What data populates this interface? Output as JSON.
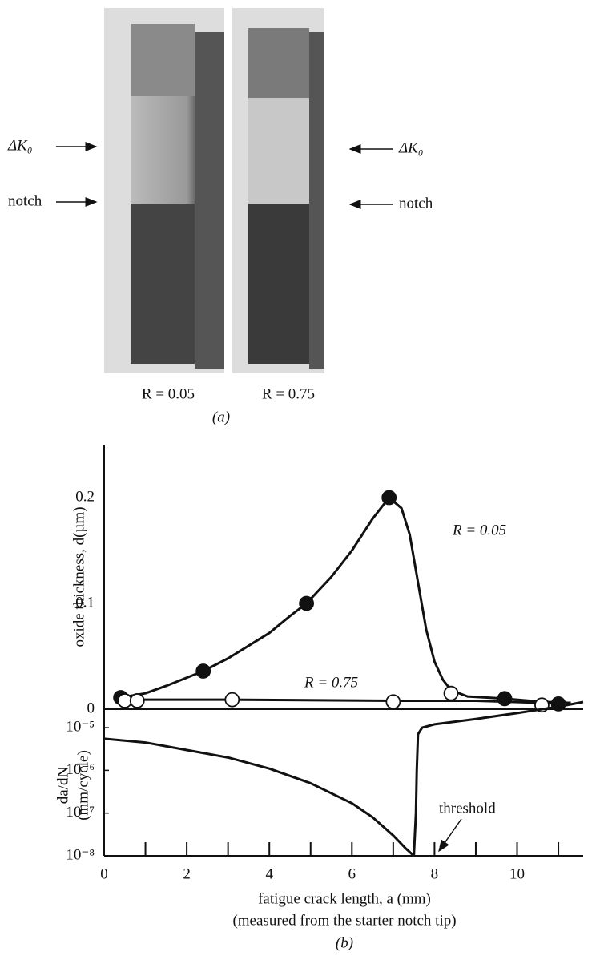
{
  "figure_a": {
    "labels": {
      "dk0_left": "ΔK₀",
      "notch_left": "notch",
      "dk0_right": "ΔK₀",
      "notch_right": "notch",
      "r_left": "R = 0.05",
      "r_right": "R = 0.75"
    },
    "caption": "(a)"
  },
  "chart_data": [
    {
      "type": "line",
      "y_label": "oxide thickness, d(µm)",
      "xlim": [
        0,
        11.6
      ],
      "ylim": [
        0,
        0.25
      ],
      "yticks": [
        0,
        0.1,
        0.2
      ],
      "series": [
        {
          "name": "R = 0.05",
          "color": "#111111",
          "x": [
            0.3,
            0.4,
            1.0,
            1.5,
            2.4,
            3.0,
            3.5,
            4.0,
            4.5,
            4.9,
            5.5,
            6.0,
            6.5,
            6.9,
            7.2,
            7.4,
            7.6,
            7.8,
            8.0,
            8.2,
            8.4,
            8.8,
            9.7,
            10.6,
            11.3
          ],
          "values": [
            0.011,
            0.011,
            0.015,
            0.022,
            0.036,
            0.048,
            0.06,
            0.072,
            0.088,
            0.1,
            0.125,
            0.15,
            0.18,
            0.2,
            0.19,
            0.165,
            0.12,
            0.075,
            0.045,
            0.028,
            0.018,
            0.012,
            0.01,
            0.007,
            0.006
          ]
        },
        {
          "name": "R = 0.75",
          "color": "#111111",
          "x": [
            0.3,
            3.0,
            7.0,
            9.0,
            10.6,
            11.3
          ],
          "values": [
            0.009,
            0.009,
            0.008,
            0.008,
            0.006,
            0.006
          ]
        }
      ],
      "markers": [
        {
          "style": "filled",
          "x": [
            0.4,
            2.4,
            4.9,
            6.9,
            9.7,
            11.0
          ],
          "values": [
            0.011,
            0.036,
            0.1,
            0.2,
            0.01,
            0.005
          ]
        },
        {
          "style": "open",
          "x": [
            0.5,
            0.8,
            3.1,
            7.0,
            8.4,
            10.6
          ],
          "values": [
            0.008,
            0.008,
            0.009,
            0.007,
            0.015,
            0.004
          ]
        }
      ]
    },
    {
      "type": "line",
      "log_y": true,
      "y_label": [
        "da/dN",
        "(mm/cycle)"
      ],
      "x_label": "fatigue crack length, a (mm)",
      "note": "(measured from the starter notch tip)",
      "caption": "(b)",
      "xlim": [
        0,
        11.6
      ],
      "xticks": [
        0,
        2,
        4,
        6,
        8,
        10
      ],
      "x_minor_ticks": [
        1,
        3,
        5,
        7,
        9,
        11
      ],
      "ylim": [
        1e-08,
        4e-05
      ],
      "yticks": [
        {
          "value": 1e-08,
          "label": "10⁻⁸"
        },
        {
          "value": 1e-07,
          "label": "10⁻⁷"
        },
        {
          "value": 1e-06,
          "label": "10⁻⁶"
        },
        {
          "value": 1e-05,
          "label": "10⁻⁵"
        }
      ],
      "series": [
        {
          "color": "#111111",
          "x": [
            0,
            1,
            2,
            3,
            4,
            5,
            6,
            6.5,
            7,
            7.3,
            7.5,
            7.55,
            7.57,
            7.6,
            7.7,
            8,
            9,
            10,
            11,
            11.6
          ],
          "values": [
            5.5e-06,
            4.5e-06,
            3e-06,
            2e-06,
            1.1e-06,
            5e-07,
            1.7e-07,
            8e-08,
            3e-08,
            1.5e-08,
            1e-08,
            1e-07,
            1e-06,
            7e-06,
            1e-05,
            1.2e-05,
            1.6e-05,
            2.2e-05,
            3.1e-05,
            4e-05
          ]
        }
      ],
      "annotation": {
        "text": "threshold"
      }
    }
  ]
}
